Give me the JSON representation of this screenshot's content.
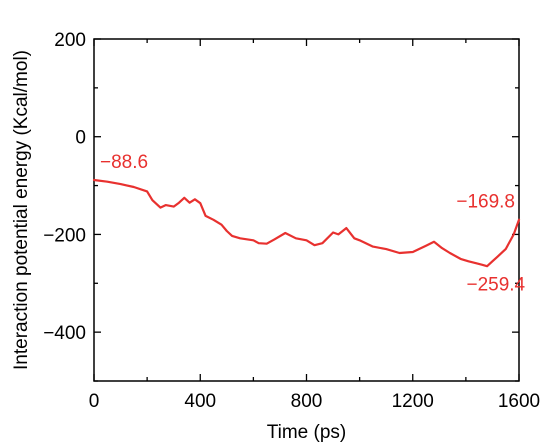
{
  "chart_data": {
    "type": "line",
    "title": "",
    "xlabel": "Time (ps)",
    "ylabel": "Interaction potential energy (Kcal/mol)",
    "xlim": [
      0,
      1600
    ],
    "ylim": [
      -500,
      200
    ],
    "xticks": [
      0,
      400,
      800,
      1200,
      1600
    ],
    "xtick_labels": [
      "0",
      "400",
      "800",
      "1200",
      "1600"
    ],
    "yticks": [
      200,
      0,
      -200,
      -400
    ],
    "ytick_labels": [
      "200",
      "0",
      "−200",
      "−400"
    ],
    "grid": false,
    "line_color": "#e8312f",
    "series": [
      {
        "x": [
          0,
          50,
          100,
          150,
          200,
          220,
          250,
          270,
          300,
          320,
          340,
          360,
          380,
          400,
          420,
          450,
          480,
          500,
          520,
          550,
          600,
          620,
          650,
          680,
          720,
          760,
          800,
          830,
          860,
          900,
          920,
          950,
          980,
          1000,
          1050,
          1100,
          1150,
          1200,
          1250,
          1280,
          1310,
          1340,
          1380,
          1410,
          1440,
          1460,
          1480,
          1500,
          1520,
          1550,
          1580,
          1600
        ],
        "y": [
          -88.6,
          -92,
          -97,
          -103,
          -112,
          -130,
          -145,
          -140,
          -143,
          -135,
          -125,
          -135,
          -128,
          -136,
          -162,
          -170,
          -180,
          -193,
          -203,
          -208,
          -212,
          -218,
          -219,
          -210,
          -197,
          -208,
          -212,
          -222,
          -218,
          -196,
          -200,
          -187,
          -208,
          -212,
          -225,
          -230,
          -238,
          -236,
          -223,
          -215,
          -228,
          -238,
          -250,
          -255,
          -259,
          -262,
          -265,
          -255,
          -245,
          -230,
          -200,
          -169.8
        ]
      }
    ],
    "annotations": [
      {
        "text": "−88.6",
        "x": 0,
        "y": -88.6,
        "position": "above-right"
      },
      {
        "text": "−169.8",
        "x": 1600,
        "y": -169.8,
        "position": "above-left"
      },
      {
        "text": "−259.4",
        "x": 1460,
        "y": -262,
        "position": "below"
      }
    ]
  }
}
